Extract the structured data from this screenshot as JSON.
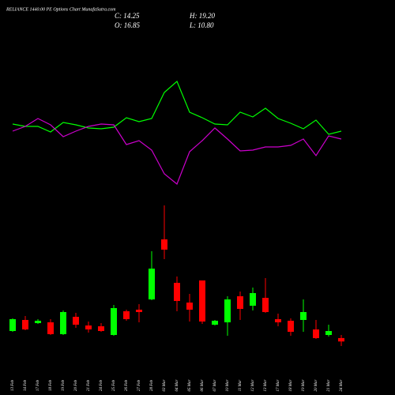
{
  "chart_data": {
    "type": "candlestick",
    "title": "RELIANCE 1440.00 PE Options Chart MunafaSutra.com",
    "stats": [
      "C: 14.25",
      "H: 19.20",
      "O: 16.85",
      "L: 10.80"
    ],
    "categories": [
      "13 Feb",
      "14 Feb",
      "17 Feb",
      "18 Feb",
      "19 Feb",
      "20 Feb",
      "21 Feb",
      "24 Feb",
      "25 Feb",
      "26 Feb",
      "27 Feb",
      "28 Feb",
      "03 Mar",
      "04 Mar",
      "05 Mar",
      "06 Mar",
      "07 Mar",
      "10 Mar",
      "11 Mar",
      "12 Mar",
      "13 Mar",
      "17 Mar",
      "18 Mar",
      "19 Mar",
      "20 Mar",
      "21 Mar",
      "24 Mar"
    ],
    "open": [
      22.2,
      30.6,
      28.2,
      28.8,
      19.8,
      33.0,
      26.4,
      25.8,
      19.2,
      37.2,
      38.4,
      46.2,
      91.8,
      58.8,
      43.8,
      60.6,
      27.0,
      28.8,
      48.6,
      41.4,
      47.4,
      31.2,
      30.0,
      30.6,
      23.4,
      19.2,
      16.85
    ],
    "high": [
      31.8,
      33.6,
      31.2,
      31.2,
      37.8,
      36.0,
      29.4,
      28.2,
      42.0,
      38.4,
      42.6,
      82.8,
      117.6,
      63.6,
      50.4,
      60.6,
      30.6,
      48.6,
      52.2,
      55.2,
      62.4,
      35.4,
      31.8,
      46.2,
      30.6,
      27.0,
      19.2
    ],
    "low": [
      21.6,
      22.8,
      27.6,
      19.2,
      19.2,
      24.6,
      21.0,
      21.6,
      18.6,
      30.0,
      28.8,
      45.6,
      76.8,
      37.2,
      29.4,
      27.6,
      26.4,
      18.6,
      30.6,
      37.8,
      36.0,
      25.8,
      18.6,
      21.6,
      16.2,
      18.0,
      10.8
    ],
    "close": [
      31.2,
      23.4,
      30.0,
      19.8,
      36.6,
      27.0,
      23.4,
      22.2,
      39.6,
      31.2,
      36.6,
      69.6,
      84.0,
      45.0,
      38.4,
      29.4,
      30.0,
      46.2,
      39.0,
      51.0,
      36.6,
      28.8,
      21.6,
      36.6,
      16.8,
      22.2,
      14.25
    ],
    "up_color": "#00ff00",
    "down_color": "#ff0000",
    "lines": [
      {
        "color": "#00ff00",
        "values": [
          179.4,
          177.6,
          177.6,
          173.4,
          180.6,
          178.8,
          176.4,
          175.8,
          177.0,
          184.2,
          181.2,
          183.6,
          203.4,
          211.8,
          188.4,
          184.2,
          179.4,
          178.8,
          188.4,
          184.8,
          191.4,
          183.6,
          180.0,
          175.8,
          182.4,
          171.6,
          174.0
        ]
      },
      {
        "color": "#cc00cc",
        "values": [
          174.0,
          177.6,
          183.6,
          178.8,
          169.8,
          174.0,
          177.6,
          179.4,
          178.8,
          163.8,
          166.8,
          159.6,
          141.6,
          133.8,
          158.4,
          166.8,
          176.4,
          168.0,
          159.0,
          159.6,
          162.0,
          162.0,
          163.2,
          168.0,
          155.4,
          170.4,
          168.0
        ]
      }
    ],
    "ylim": [
      0,
      270
    ]
  }
}
